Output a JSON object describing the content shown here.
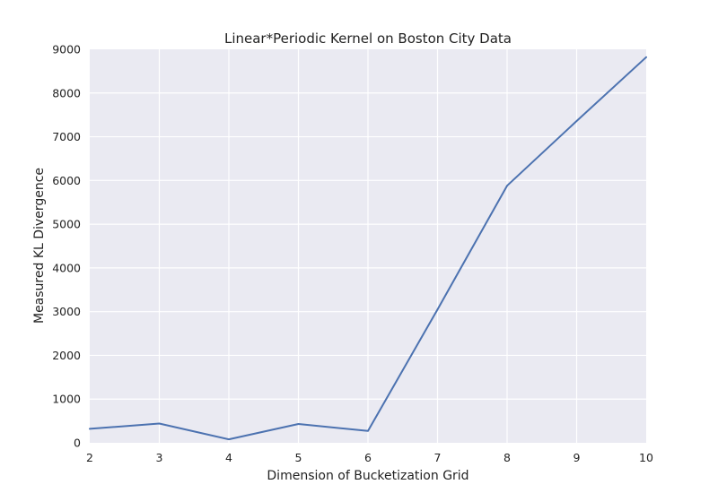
{
  "chart_data": {
    "type": "line",
    "title": "Linear*Periodic Kernel on Boston City Data",
    "xlabel": "Dimension of Bucketization Grid",
    "ylabel": "Measured KL Divergence",
    "xlim": [
      2,
      10
    ],
    "ylim": [
      0,
      9000
    ],
    "x_ticks": [
      "2",
      "3",
      "4",
      "5",
      "6",
      "7",
      "8",
      "9",
      "10"
    ],
    "y_ticks": [
      "0",
      "1000",
      "2000",
      "3000",
      "4000",
      "5000",
      "6000",
      "7000",
      "8000",
      "9000"
    ],
    "grid": true,
    "series": [
      {
        "color": "#4c72b0",
        "x": [
          2,
          3,
          4,
          5,
          6,
          7,
          8,
          9,
          10
        ],
        "y": [
          320,
          440,
          80,
          430,
          270,
          3050,
          5880,
          7360,
          8820
        ]
      }
    ]
  }
}
